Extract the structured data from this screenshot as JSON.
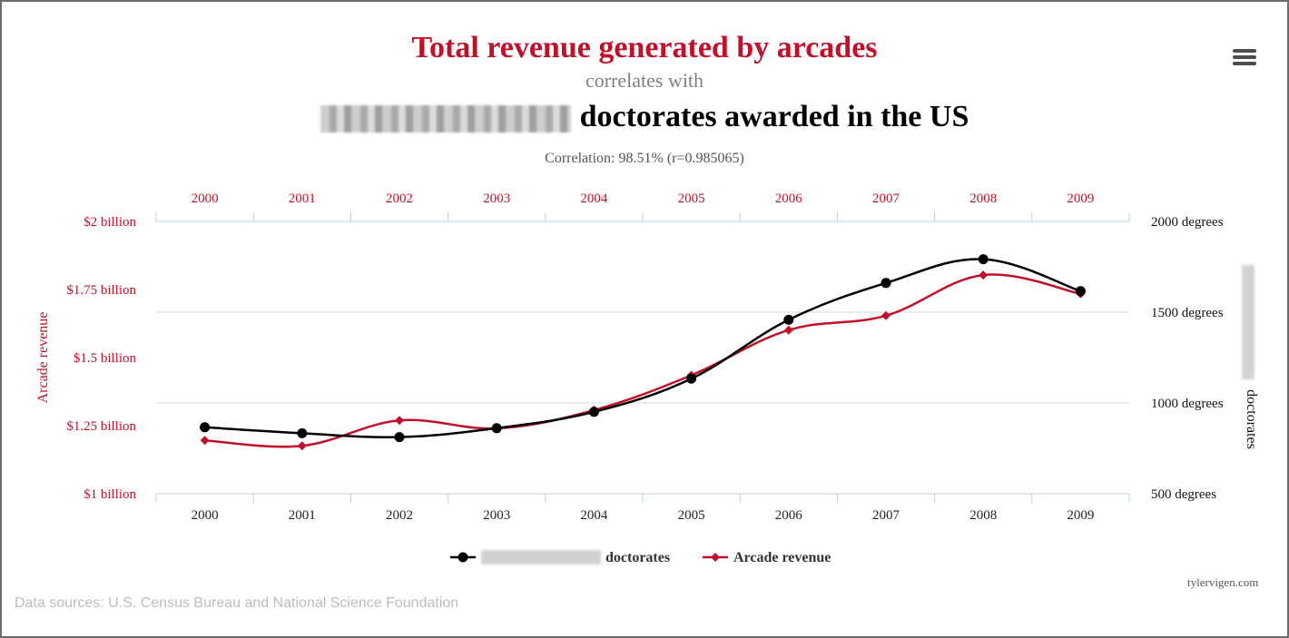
{
  "header": {
    "title_main": "Total revenue generated by arcades",
    "title_sub": "correlates with",
    "title_second": "doctorates awarded in the US",
    "correlation": "Correlation: 98.51% (r=0.985065)",
    "menu_icon": "hamburger-menu-icon"
  },
  "footer": {
    "source": "Data sources: U.S. Census Bureau and National Science Foundation",
    "credit": "tylervigen.com"
  },
  "chart_data": {
    "type": "line",
    "x": [
      "2000",
      "2001",
      "2002",
      "2003",
      "2004",
      "2005",
      "2006",
      "2007",
      "2008",
      "2009"
    ],
    "series": [
      {
        "name": "doctorates",
        "axis": "right",
        "color": "#000000",
        "marker": "circle",
        "unit": "degrees",
        "values": [
          866,
          833,
          812,
          861,
          951,
          1134,
          1458,
          1661,
          1792,
          1616
        ]
      },
      {
        "name": "Arcade revenue",
        "axis": "left",
        "color": "#c0102a",
        "marker": "diamond",
        "unit": "billion USD",
        "values": [
          1.196,
          1.176,
          1.269,
          1.24,
          1.307,
          1.435,
          1.601,
          1.654,
          1.803,
          1.734
        ]
      }
    ],
    "left_axis": {
      "label": "Arcade revenue",
      "ylim": [
        1.0,
        2.0
      ],
      "ticks": [
        "$1 billion",
        "$1.25 billion",
        "$1.5 billion",
        "$1.75 billion",
        "$2 billion"
      ],
      "color": "#c0102a"
    },
    "right_axis": {
      "label": "doctorates",
      "ylim": [
        500,
        2000
      ],
      "ticks": [
        "500 degrees",
        "1000 degrees",
        "1500 degrees",
        "2000 degrees"
      ],
      "color": "#000000"
    },
    "top_axis_color": "#c0102a",
    "grid": true,
    "legend": {
      "placement": "bottom-center",
      "items": [
        {
          "label": "doctorates",
          "color": "#000000",
          "marker": "circle"
        },
        {
          "label": "Arcade revenue",
          "color": "#c0102a",
          "marker": "diamond"
        }
      ]
    }
  }
}
